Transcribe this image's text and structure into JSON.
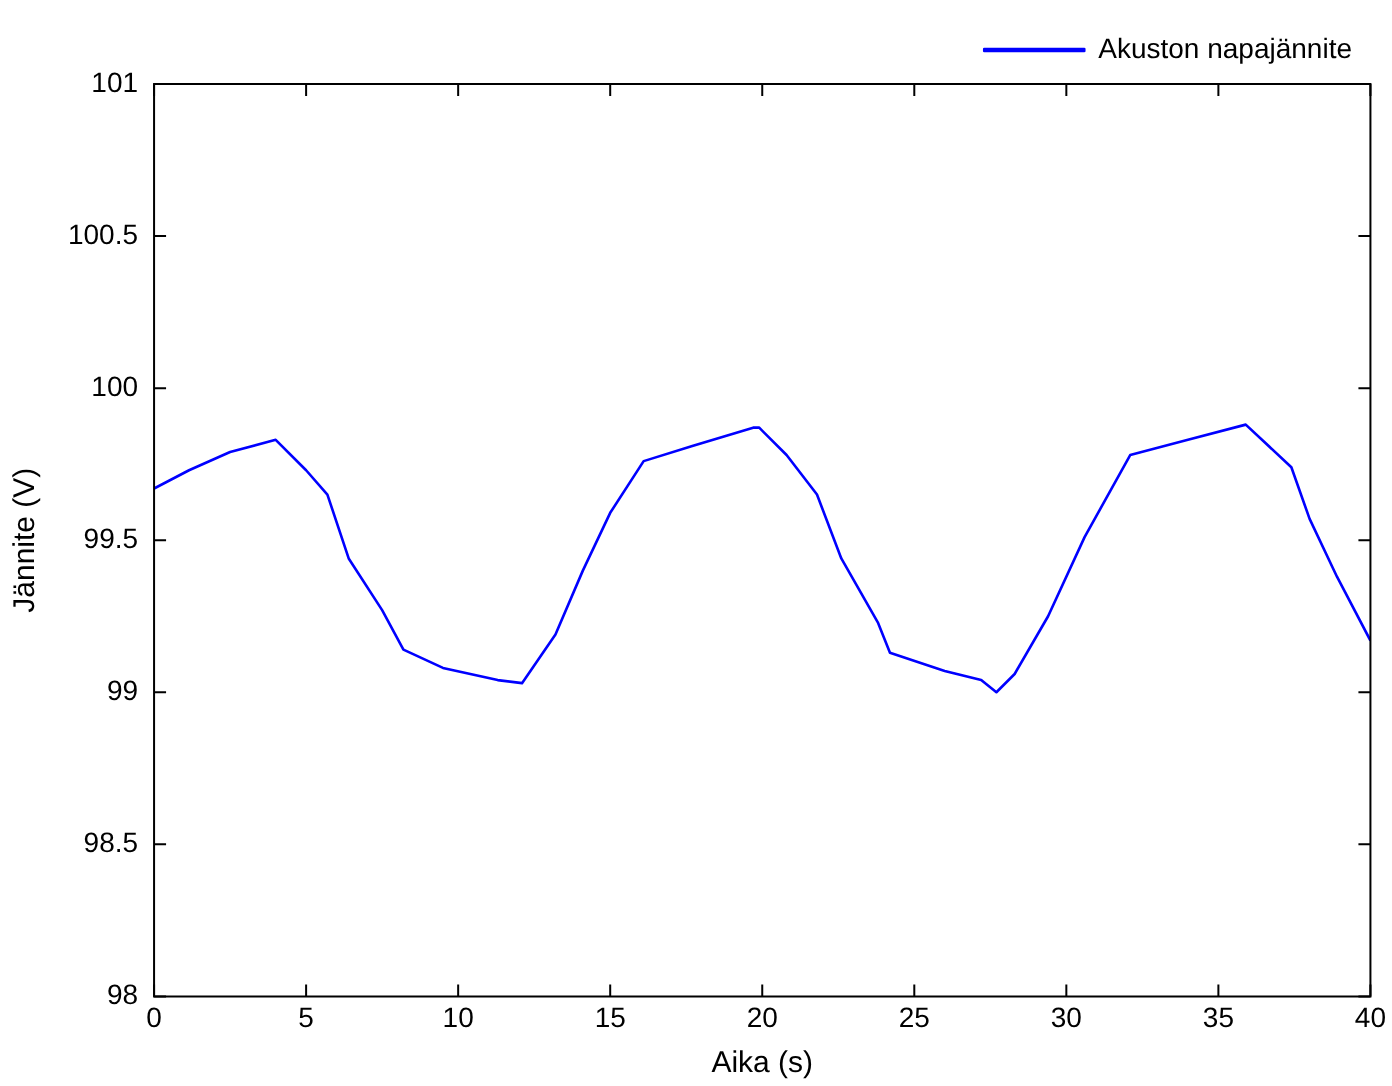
{
  "chart_data": {
    "type": "line",
    "xlabel": "Aika (s)",
    "ylabel": "Jännite (V)",
    "x": [
      0,
      1.15,
      2.5,
      4.0,
      5.0,
      5.7,
      6.4,
      7.5,
      8.2,
      9.5,
      11.3,
      12.1,
      13.2,
      14.1,
      15.0,
      16.1,
      17.7,
      19.7,
      19.9,
      20.8,
      21.8,
      22.6,
      23.8,
      24.2,
      26.0,
      27.2,
      27.7,
      28.3,
      29.4,
      30.6,
      32.1,
      34.0,
      35.9,
      37.4,
      38.0,
      38.9,
      40
    ],
    "series": [
      {
        "name": "Akuston napajännite",
        "color": "#0000ff",
        "values": [
          99.67,
          99.73,
          99.79,
          99.83,
          99.73,
          99.65,
          99.44,
          99.27,
          99.14,
          99.08,
          99.04,
          99.03,
          99.19,
          99.4,
          99.59,
          99.76,
          99.81,
          99.87,
          99.87,
          99.78,
          99.65,
          99.44,
          99.23,
          99.13,
          99.07,
          99.04,
          99.0,
          99.06,
          99.25,
          99.51,
          99.78,
          99.83,
          99.88,
          99.74,
          99.57,
          99.38,
          99.17
        ]
      }
    ],
    "xlim": [
      0,
      40
    ],
    "xticks": [
      0,
      5,
      10,
      15,
      20,
      25,
      30,
      35,
      40
    ],
    "ylim": [
      98,
      101
    ],
    "yticks": [
      98,
      98.5,
      99,
      99.5,
      100,
      100.5,
      101
    ],
    "grid": false,
    "legend": "top right",
    "marker": "none",
    "line_style": "solid"
  }
}
